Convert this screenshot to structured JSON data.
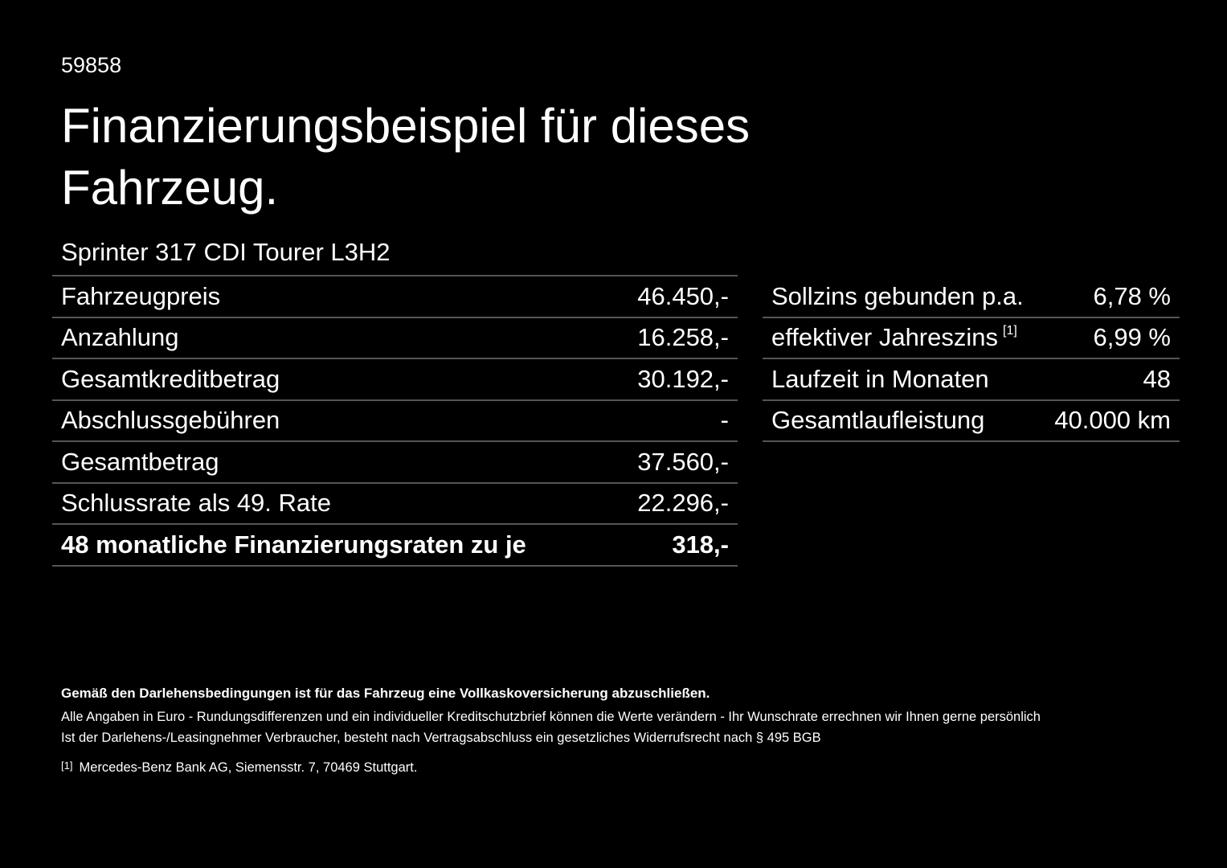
{
  "header": {
    "id": "59858",
    "title": "Finanzierungsbeispiel für dieses Fahrzeug.",
    "subtitle": "Sprinter 317 CDI Tourer L3H2"
  },
  "left_table": {
    "rows": [
      [
        "Fahrzeugpreis",
        "46.450,-"
      ],
      [
        "Anzahlung",
        "16.258,-"
      ],
      [
        "Gesamtkreditbetrag",
        "30.192,-"
      ],
      [
        "Abschlussgebühren",
        "-"
      ],
      [
        "Gesamtbetrag",
        "37.560,-"
      ],
      [
        "Schlussrate als 49. Rate",
        "22.296,-"
      ],
      [
        "48 monatliche Finanzierungsraten zu je",
        "318,-"
      ]
    ]
  },
  "right_table": {
    "rows": [
      [
        "Sollzins gebunden p.a.",
        "6,78 %"
      ],
      [
        "effektiver Jahreszins",
        "6,99 %"
      ],
      [
        "Laufzeit in Monaten",
        "48"
      ],
      [
        "Gesamtlaufleistung",
        "40.000 km"
      ]
    ],
    "footnote_ref": "[1]"
  },
  "notes": {
    "bold": "Gemäß den Darlehensbedingungen ist für das Fahrzeug eine Vollkaskoversicherung abzuschließen.",
    "lines": [
      "Alle Angaben in Euro - Rundungsdifferenzen und ein individueller Kreditschutzbrief können die Werte verändern - Ihr Wunschrate errechnen wir Ihnen gerne persönlich",
      "Ist der Darlehens-/Leasingnehmer Verbraucher, besteht nach Vertragsabschluss ein gesetzliches Widerrufsrecht nach § 495 BGB"
    ],
    "footnote": {
      "marker": "[1]",
      "text": "Mercedes-Benz Bank AG, Siemensstr. 7, 70469 Stuttgart."
    }
  }
}
